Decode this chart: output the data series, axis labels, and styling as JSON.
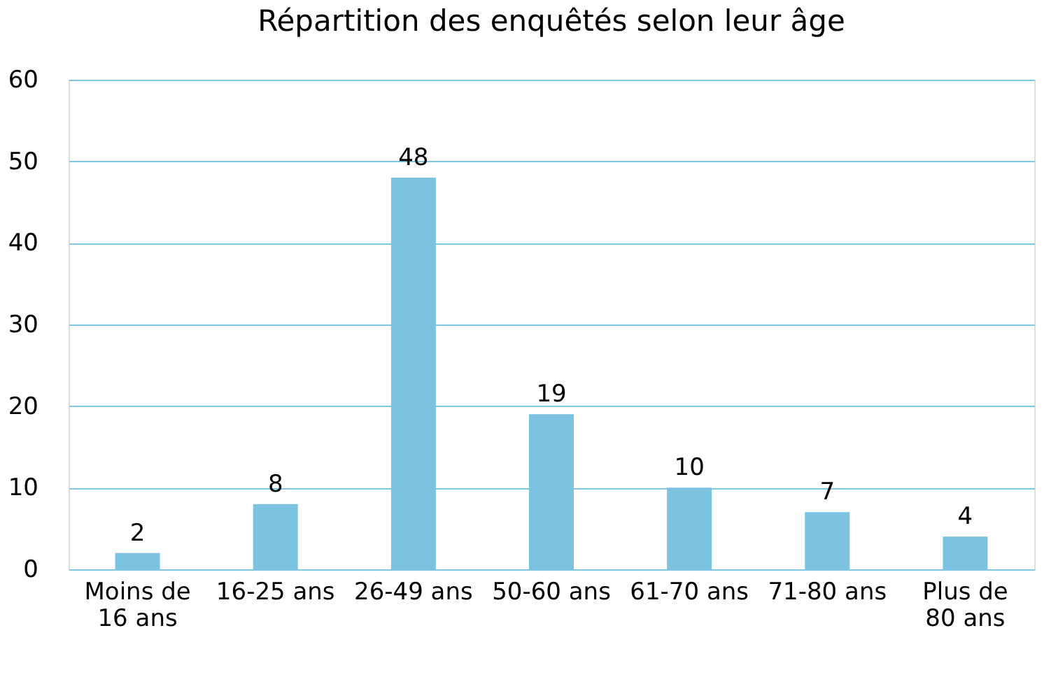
{
  "chart_data": {
    "type": "bar",
    "title": "Répartition des enquêtés selon leur âge",
    "categories": [
      "Moins de 16 ans",
      "16-25 ans",
      "26-49 ans",
      "50-60 ans",
      "61-70 ans",
      "71-80 ans",
      "Plus de 80 ans"
    ],
    "values": [
      2,
      8,
      48,
      19,
      10,
      7,
      4
    ],
    "color": "#7bc3e0",
    "ylim": [
      0,
      60
    ],
    "yticks": [
      0,
      10,
      20,
      30,
      40,
      50,
      60
    ],
    "grid": "y",
    "data_labels": true
  }
}
